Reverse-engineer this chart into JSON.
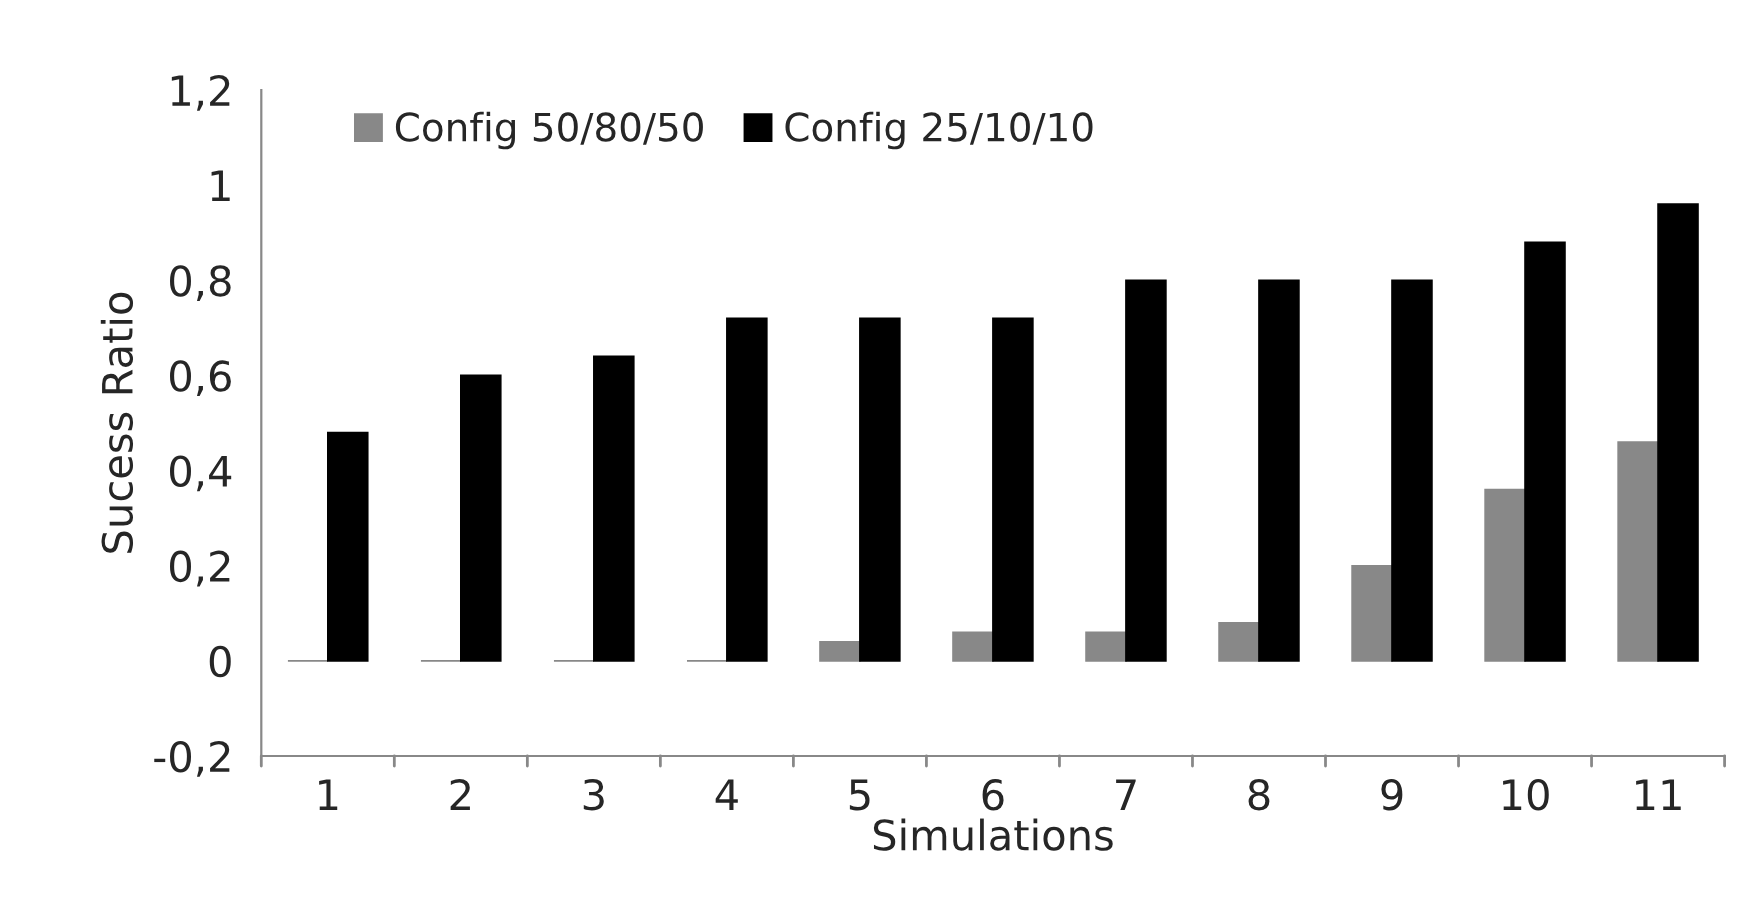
{
  "chart_data": {
    "type": "bar",
    "xlabel": "Simulations",
    "ylabel": "Sucess Ratio",
    "categories": [
      "1",
      "2",
      "3",
      "4",
      "5",
      "6",
      "7",
      "8",
      "9",
      "10",
      "11"
    ],
    "series": [
      {
        "name": "Config 50/80/50",
        "color": "#888888",
        "values": [
          0,
          0,
          0,
          0,
          0.04,
          0.06,
          0.06,
          0.08,
          0.2,
          0.36,
          0.46
        ]
      },
      {
        "name": "Config 25/10/10",
        "color": "#000000",
        "values": [
          0.48,
          0.6,
          0.64,
          0.72,
          0.72,
          0.72,
          0.8,
          0.8,
          0.8,
          0.88,
          0.96
        ]
      }
    ],
    "ylim": [
      -0.2,
      1.2
    ],
    "yticks": [
      {
        "value": -0.2,
        "label": "-0,2"
      },
      0,
      {
        "value": 0.2,
        "label": "0,2"
      },
      {
        "value": 0.4,
        "label": "0,4"
      },
      {
        "value": 0.6,
        "label": "0,6"
      },
      {
        "value": 0.8,
        "label": "0,8"
      },
      1,
      {
        "value": 1.2,
        "label": "1,2"
      }
    ],
    "legend": "top left",
    "grid": false
  }
}
